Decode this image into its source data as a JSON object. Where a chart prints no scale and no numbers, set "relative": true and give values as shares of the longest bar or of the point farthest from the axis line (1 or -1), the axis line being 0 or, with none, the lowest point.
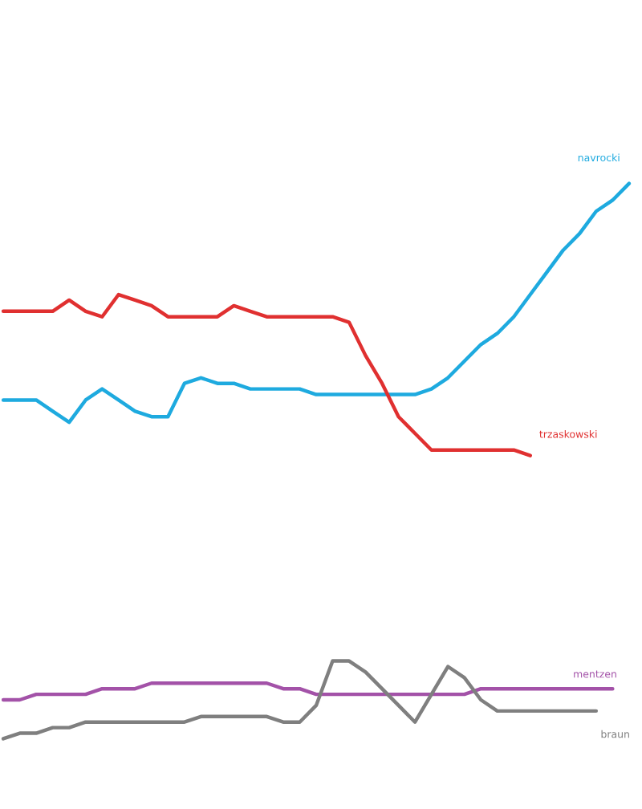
{
  "chart_data": {
    "type": "line",
    "relative": true,
    "grid": false,
    "legend": false,
    "marker": "none",
    "line_style": "solid",
    "categories": [
      null,
      null,
      null,
      null,
      null,
      null,
      null,
      null,
      null,
      null,
      null,
      null,
      null,
      null,
      null,
      null,
      null,
      null,
      null,
      null,
      null,
      null,
      null,
      null,
      null,
      null,
      null,
      null,
      null,
      null,
      null,
      null,
      null,
      null,
      null,
      null,
      null,
      null,
      null
    ],
    "series": [
      {
        "name": "navrocki",
        "color": "#1eaadf",
        "values": [
          0.61,
          0.61,
          0.61,
          0.59,
          0.57,
          0.61,
          0.63,
          0.61,
          0.59,
          0.58,
          0.58,
          0.64,
          0.65,
          0.64,
          0.64,
          0.63,
          0.63,
          0.63,
          0.63,
          0.62,
          0.62,
          0.62,
          0.62,
          0.62,
          0.62,
          0.62,
          0.63,
          0.65,
          0.68,
          0.71,
          0.73,
          0.76,
          0.8,
          0.84,
          0.88,
          0.91,
          0.95,
          0.97,
          1.0
        ]
      },
      {
        "name": "trzaskowski",
        "color": "#e03030",
        "values": [
          0.77,
          0.77,
          0.77,
          0.77,
          0.79,
          0.77,
          0.76,
          0.8,
          0.79,
          0.78,
          0.76,
          0.76,
          0.76,
          0.76,
          0.78,
          0.77,
          0.76,
          0.76,
          0.76,
          0.76,
          0.76,
          0.75,
          0.69,
          0.64,
          0.58,
          0.55,
          0.52,
          0.52,
          0.52,
          0.52,
          0.52,
          0.52,
          0.51,
          null,
          null,
          null,
          null,
          null,
          null
        ]
      },
      {
        "name": "mentzen",
        "color": "#a352a8",
        "values": [
          0.07,
          0.07,
          0.08,
          0.08,
          0.08,
          0.08,
          0.09,
          0.09,
          0.09,
          0.1,
          0.1,
          0.1,
          0.1,
          0.1,
          0.1,
          0.1,
          0.1,
          0.09,
          0.09,
          0.08,
          0.08,
          0.08,
          0.08,
          0.08,
          0.08,
          0.08,
          0.08,
          0.08,
          0.08,
          0.09,
          0.09,
          0.09,
          0.09,
          0.09,
          0.09,
          0.09,
          0.09,
          0.09,
          null
        ]
      },
      {
        "name": "braun",
        "color": "#7f7f7f",
        "values": [
          0,
          0.01,
          0.01,
          0.02,
          0.02,
          0.03,
          0.03,
          0.03,
          0.03,
          0.03,
          0.03,
          0.03,
          0.04,
          0.04,
          0.04,
          0.04,
          0.04,
          0.03,
          0.03,
          0.06,
          0.14,
          0.14,
          0.12,
          0.09,
          0.06,
          0.03,
          0.08,
          0.13,
          0.11,
          0.07,
          0.05,
          0.05,
          0.05,
          0.05,
          0.05,
          0.05,
          0.05,
          null,
          null
        ]
      }
    ]
  }
}
